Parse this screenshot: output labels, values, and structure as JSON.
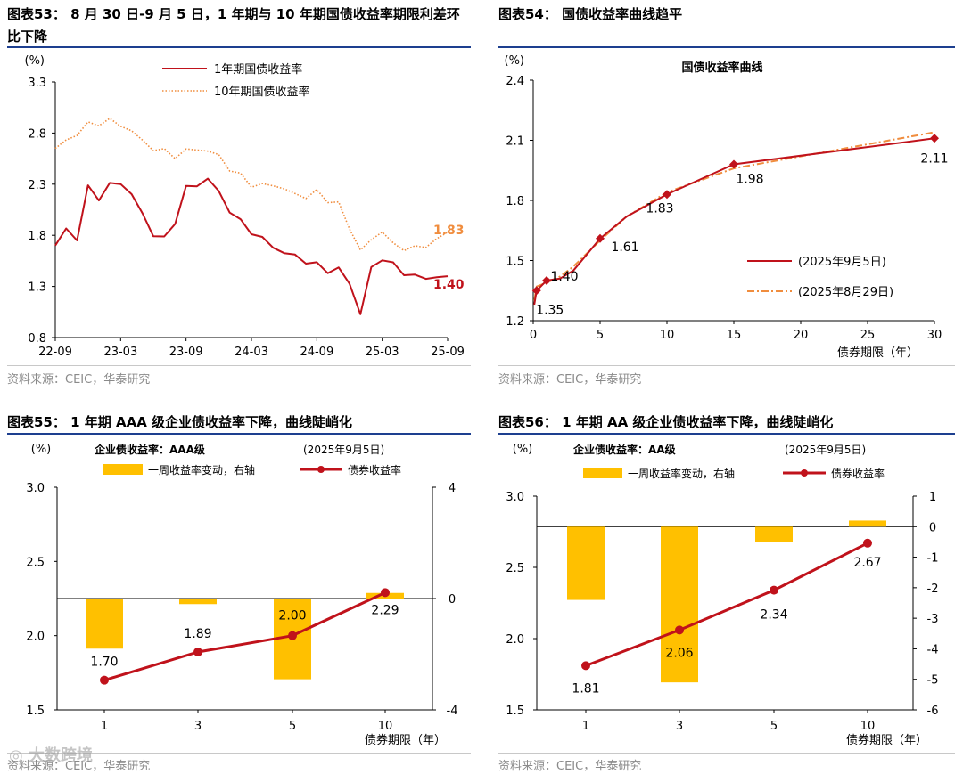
{
  "panels": [
    {
      "title": "图表53： 8 月 30 日-9 月 5 日，1 年期与 10 年期国债收益率期限利差环比下降",
      "source": "资料来源：CEIC，华泰研究"
    },
    {
      "title": "图表54： 国债收益率曲线趋平",
      "source": "资料来源：CEIC，华泰研究"
    },
    {
      "title": "图表55： 1 年期 AAA 级企业债收益率下降，曲线陡峭化",
      "source": "资料来源：CEIC，华泰研究"
    },
    {
      "title": "图表56： 1 年期 AA 级企业债收益率下降，曲线陡峭化",
      "source": "资料来源：CEIC，华泰研究"
    }
  ],
  "watermark": "大数跨境",
  "chart_data": [
    {
      "type": "line",
      "ylabel": "(%)",
      "ylim": [
        0.8,
        3.3
      ],
      "yticks": [
        "0.8",
        "1.3",
        "1.8",
        "2.3",
        "2.8",
        "3.3"
      ],
      "xticks": [
        "22-09",
        "23-03",
        "23-09",
        "24-03",
        "24-09",
        "25-03",
        "25-09"
      ],
      "legend_position": "top-left",
      "series": [
        {
          "name": "1年期国债收益率",
          "color": "#c0121b",
          "style": "solid",
          "end_label": "1.40",
          "x": [
            "2022-09",
            "2022-10",
            "2022-11",
            "2022-12",
            "2023-01",
            "2023-02",
            "2023-03",
            "2023-04",
            "2023-05",
            "2023-06",
            "2023-07",
            "2023-08",
            "2023-09",
            "2023-10",
            "2023-11",
            "2023-12",
            "2024-01",
            "2024-02",
            "2024-03",
            "2024-04",
            "2024-05",
            "2024-06",
            "2024-07",
            "2024-08",
            "2024-09",
            "2024-10",
            "2024-11",
            "2024-12",
            "2025-01",
            "2025-02",
            "2025-03",
            "2025-04",
            "2025-05",
            "2025-06",
            "2025-07",
            "2025-08",
            "2025-09"
          ],
          "values": [
            1.7,
            1.85,
            1.78,
            2.25,
            2.18,
            2.28,
            2.32,
            2.2,
            2.0,
            1.82,
            1.75,
            1.95,
            2.25,
            2.3,
            2.35,
            2.22,
            2.05,
            1.92,
            1.85,
            1.75,
            1.7,
            1.62,
            1.6,
            1.55,
            1.5,
            1.47,
            1.45,
            1.35,
            1.02,
            1.48,
            1.58,
            1.5,
            1.45,
            1.38,
            1.4,
            1.38,
            1.4
          ]
        },
        {
          "name": "10年期国债收益率",
          "color": "#f08d3e",
          "style": "dotted",
          "end_label": "1.83",
          "x": [
            "2022-09",
            "2022-10",
            "2022-11",
            "2022-12",
            "2023-01",
            "2023-02",
            "2023-03",
            "2023-04",
            "2023-05",
            "2023-06",
            "2023-07",
            "2023-08",
            "2023-09",
            "2023-10",
            "2023-11",
            "2023-12",
            "2024-01",
            "2024-02",
            "2024-03",
            "2024-04",
            "2024-05",
            "2024-06",
            "2024-07",
            "2024-08",
            "2024-09",
            "2024-10",
            "2024-11",
            "2024-12",
            "2025-01",
            "2025-02",
            "2025-03",
            "2025-04",
            "2025-05",
            "2025-06",
            "2025-07",
            "2025-08",
            "2025-09"
          ],
          "values": [
            2.65,
            2.72,
            2.8,
            2.88,
            2.9,
            2.92,
            2.88,
            2.82,
            2.72,
            2.65,
            2.62,
            2.58,
            2.62,
            2.65,
            2.62,
            2.58,
            2.45,
            2.38,
            2.3,
            2.28,
            2.3,
            2.25,
            2.2,
            2.18,
            2.22,
            2.15,
            2.1,
            1.88,
            1.65,
            1.75,
            1.85,
            1.7,
            1.68,
            1.67,
            1.7,
            1.76,
            1.83
          ]
        }
      ]
    },
    {
      "type": "line",
      "title": "国债收益率曲线",
      "ylabel": "(%)",
      "xlabel": "债券期限（年）",
      "xlim": [
        0,
        30
      ],
      "ylim": [
        1.2,
        2.4
      ],
      "xticks": [
        0,
        5,
        10,
        15,
        20,
        25,
        30
      ],
      "yticks": [
        "1.2",
        "1.5",
        "1.8",
        "2.1",
        "2.4"
      ],
      "legend_position": "bottom-right",
      "series": [
        {
          "name": "(2025年9月5日)",
          "color": "#c0121b",
          "style": "solid",
          "x": [
            0.08,
            0.25,
            1,
            2,
            3,
            5,
            7,
            10,
            15,
            30
          ],
          "values": [
            1.28,
            1.35,
            1.4,
            1.41,
            1.45,
            1.61,
            1.72,
            1.83,
            1.98,
            2.11
          ],
          "markers_at": [
            0.25,
            1,
            5,
            10,
            15,
            30
          ],
          "point_labels": [
            {
              "x": 0.25,
              "y": 1.35,
              "label": "1.35"
            },
            {
              "x": 1,
              "y": 1.4,
              "label": "1.40"
            },
            {
              "x": 5,
              "y": 1.61,
              "label": "1.61"
            },
            {
              "x": 10,
              "y": 1.83,
              "label": "1.83"
            },
            {
              "x": 15,
              "y": 1.98,
              "label": "1.98"
            },
            {
              "x": 30,
              "y": 2.11,
              "label": "2.11"
            }
          ]
        },
        {
          "name": "(2025年8月29日)",
          "color": "#f08d3e",
          "style": "dashdot",
          "x": [
            0.08,
            0.25,
            1,
            2,
            3,
            5,
            7,
            10,
            15,
            30
          ],
          "values": [
            1.3,
            1.37,
            1.39,
            1.42,
            1.47,
            1.6,
            1.72,
            1.84,
            1.96,
            2.14
          ]
        }
      ]
    },
    {
      "type": "bar",
      "subtitle_left": "企业债收益率：AAA级",
      "subtitle_right": "(2025年9月5日)",
      "ylabel": "(%)",
      "xlabel": "债券期限（年）",
      "categories": [
        "1",
        "3",
        "5",
        "10"
      ],
      "ylim": [
        1.5,
        3.0
      ],
      "yticks": [
        "1.5",
        "2.0",
        "2.5",
        "3.0"
      ],
      "y2lim": [
        -4,
        4
      ],
      "y2ticks": [
        "-4",
        "0",
        "4"
      ],
      "series": [
        {
          "name": "一周收益率变动，右轴",
          "type": "bar",
          "axis": "right",
          "color": "#ffc000",
          "values": [
            -1.8,
            -0.2,
            -2.9,
            0.2
          ]
        },
        {
          "name": "债券收益率",
          "type": "line",
          "axis": "left",
          "color": "#c0121b",
          "values": [
            1.7,
            1.89,
            2.0,
            2.29
          ],
          "labels": [
            "1.70",
            "1.89",
            "2.00",
            "2.29"
          ]
        }
      ]
    },
    {
      "type": "bar",
      "subtitle_left": "企业债收益率：AA级",
      "subtitle_right": "(2025年9月5日)",
      "ylabel": "(%)",
      "xlabel": "债券期限（年）",
      "categories": [
        "1",
        "3",
        "5",
        "10"
      ],
      "ylim": [
        1.5,
        3.0
      ],
      "yticks": [
        "1.5",
        "2.0",
        "2.5",
        "3.0"
      ],
      "y2lim": [
        -6,
        1
      ],
      "y2ticks": [
        "-6",
        "-5",
        "-4",
        "-3",
        "-2",
        "-1",
        "0",
        "1"
      ],
      "series": [
        {
          "name": "一周收益率变动，右轴",
          "type": "bar",
          "axis": "right",
          "color": "#ffc000",
          "values": [
            -2.4,
            -5.1,
            -0.5,
            0.2
          ]
        },
        {
          "name": "债券收益率",
          "type": "line",
          "axis": "left",
          "color": "#c0121b",
          "values": [
            1.81,
            2.06,
            2.34,
            2.67
          ],
          "labels": [
            "1.81",
            "2.06",
            "2.34",
            "2.67"
          ]
        }
      ]
    }
  ]
}
